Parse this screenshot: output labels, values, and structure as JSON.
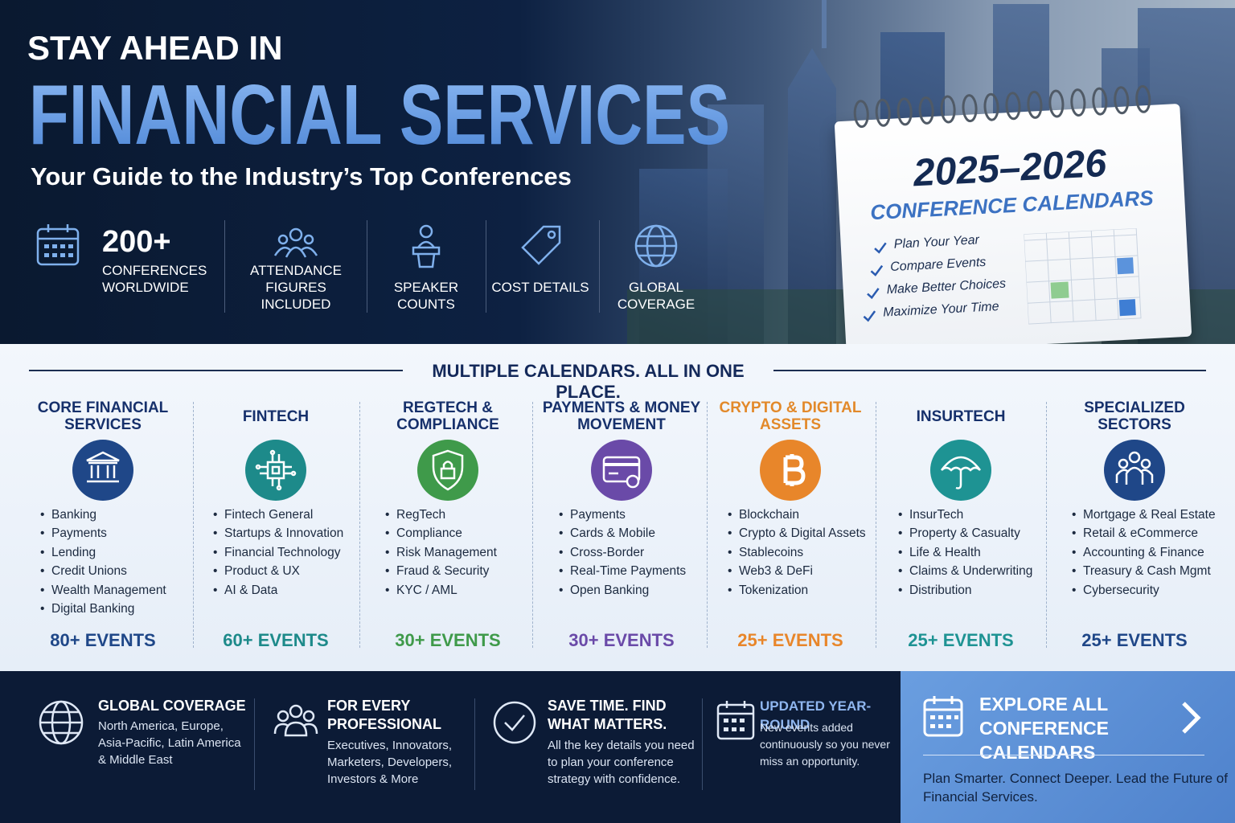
{
  "header": {
    "eyebrow": "STAY AHEAD IN",
    "title": "FINANCIAL SERVICES",
    "subtitle": "Your Guide to the Industry’s Top Conferences"
  },
  "stats": [
    {
      "value": "200+",
      "label": "CONFERENCES WORLDWIDE"
    },
    {
      "label": "ATTENDANCE FIGURES INCLUDED"
    },
    {
      "label": "SPEAKER COUNTS"
    },
    {
      "label": "COST DETAILS"
    },
    {
      "label": "GLOBAL COVERAGE"
    }
  ],
  "calendar": {
    "years": "2025–2026",
    "title": "CONFERENCE CALENDARS",
    "checks": [
      "Plan Your Year",
      "Compare Events",
      "Make Better Choices",
      "Maximize Your Time"
    ]
  },
  "section": {
    "title": "MULTIPLE CALENDARS. ALL IN ONE PLACE.",
    "categories": [
      {
        "title": "CORE FINANCIAL SERVICES",
        "color": "#1f4788",
        "title_color": "#16306b",
        "items": [
          "Banking",
          "Payments",
          "Lending",
          "Credit Unions",
          "Wealth Management",
          "Digital Banking"
        ],
        "events": "80+ EVENTS"
      },
      {
        "title": "FINTECH",
        "color": "#1d8a8a",
        "title_color": "#16306b",
        "items": [
          "Fintech General",
          "Startups & Innovation",
          "Financial Technology",
          "Product & UX",
          "AI & Data"
        ],
        "events": "60+ EVENTS"
      },
      {
        "title": "REGTECH & COMPLIANCE",
        "color": "#3f9a4a",
        "title_color": "#16306b",
        "items": [
          "RegTech",
          "Compliance",
          "Risk Management",
          "Fraud & Security",
          "KYC / AML"
        ],
        "events": "30+ EVENTS"
      },
      {
        "title": "PAYMENTS & MONEY MOVEMENT",
        "color": "#6a4aa8",
        "title_color": "#16306b",
        "items": [
          "Payments",
          "Cards & Mobile",
          "Cross-Border",
          "Real-Time Payments",
          "Open Banking"
        ],
        "events": "30+ EVENTS"
      },
      {
        "title": "CRYPTO & DIGITAL ASSETS",
        "color": "#e8862a",
        "title_color": "#e2892a",
        "items": [
          "Blockchain",
          "Crypto & Digital Assets",
          "Stablecoins",
          "Web3 & DeFi",
          "Tokenization"
        ],
        "events": "25+ EVENTS"
      },
      {
        "title": "INSURTECH",
        "color": "#1e9393",
        "title_color": "#16306b",
        "items": [
          "InsurTech",
          "Property & Casualty",
          "Life & Health",
          "Claims & Underwriting",
          "Distribution"
        ],
        "events": "25+ EVENTS"
      },
      {
        "title": "SPECIALIZED SECTORS",
        "color": "#1f4788",
        "title_color": "#16306b",
        "items": [
          "Mortgage & Real Estate",
          "Retail & eCommerce",
          "Accounting & Finance",
          "Treasury & Cash Mgmt",
          "Cybersecurity"
        ],
        "events": "25+ EVENTS"
      }
    ]
  },
  "features": [
    {
      "title": "GLOBAL COVERAGE",
      "text": "North America, Europe, Asia-Pacific, Latin America & Middle East"
    },
    {
      "title": "FOR EVERY PROFESSIONAL",
      "text": "Executives, Innovators, Marketers, Developers, Investors & More"
    },
    {
      "title": "SAVE TIME. FIND WHAT MATTERS.",
      "text": "All the key details you need to plan your conference strategy with confidence."
    },
    {
      "title": "UPDATED YEAR-ROUND",
      "text": "New events added continuously so you never miss an opportunity."
    }
  ],
  "cta": {
    "title": "EXPLORE ALL CONFERENCE CALENDARS",
    "text": "Plan Smarter. Connect Deeper. Lead the Future of Financial Services."
  }
}
